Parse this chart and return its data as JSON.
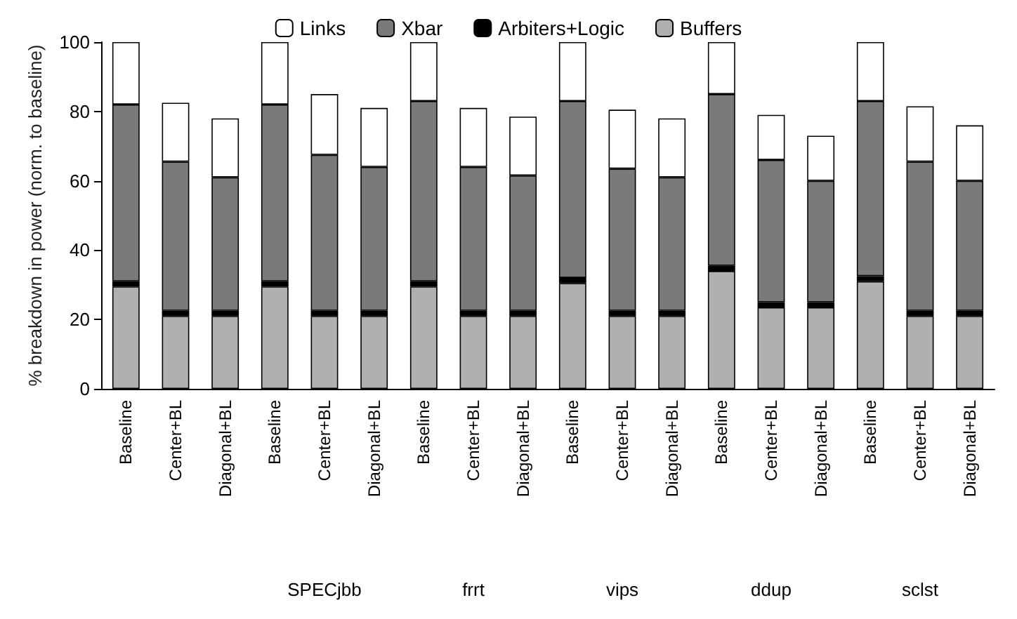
{
  "chart_data": {
    "type": "bar",
    "stacked": true,
    "ylabel": "% breakdown in power (norm. to baseline)",
    "categories": [
      "Baseline",
      "Center+BL",
      "Diagonal+BL",
      "Baseline",
      "Center+BL",
      "Diagonal+BL",
      "Baseline",
      "Center+BL",
      "Diagonal+BL",
      "Baseline",
      "Center+BL",
      "Diagonal+BL",
      "Baseline",
      "Center+BL",
      "Diagonal+BL",
      "Baseline",
      "Center+BL",
      "Diagonal+BL"
    ],
    "series": [
      {
        "name": "Buffers",
        "color": "#b0b0b0",
        "values": [
          29.5,
          21,
          21,
          29.5,
          21,
          21,
          29.5,
          21,
          21,
          30.5,
          21,
          21,
          34,
          23.5,
          23.5,
          31,
          21,
          21
        ]
      },
      {
        "name": "Arbiters+Logic",
        "color": "#000000",
        "values": [
          1.5,
          1.5,
          1.5,
          1.5,
          1.5,
          1.5,
          1.5,
          1.5,
          1.5,
          1.5,
          1.5,
          1.5,
          1.5,
          1.5,
          1.5,
          1.5,
          1.5,
          1.5
        ]
      },
      {
        "name": "Xbar",
        "color": "#7a7a7a",
        "values": [
          51,
          43,
          38.5,
          51,
          45,
          41.5,
          52,
          41.5,
          39,
          51,
          41,
          38.5,
          49.5,
          41,
          35,
          50.5,
          43,
          37.5
        ]
      },
      {
        "name": "Links",
        "color": "#ffffff",
        "values": [
          18,
          17,
          17,
          18,
          17.5,
          17,
          17,
          17,
          17,
          17,
          17,
          17,
          15,
          13,
          13,
          17,
          16,
          16
        ]
      }
    ],
    "ylim": [
      0,
      100
    ],
    "yticks": [
      0,
      20,
      40,
      60,
      80,
      100
    ],
    "grid": false,
    "legend": "top",
    "annotations": [
      "SPECjbb",
      "frrt",
      "vips",
      "ddup",
      "sclst"
    ]
  }
}
